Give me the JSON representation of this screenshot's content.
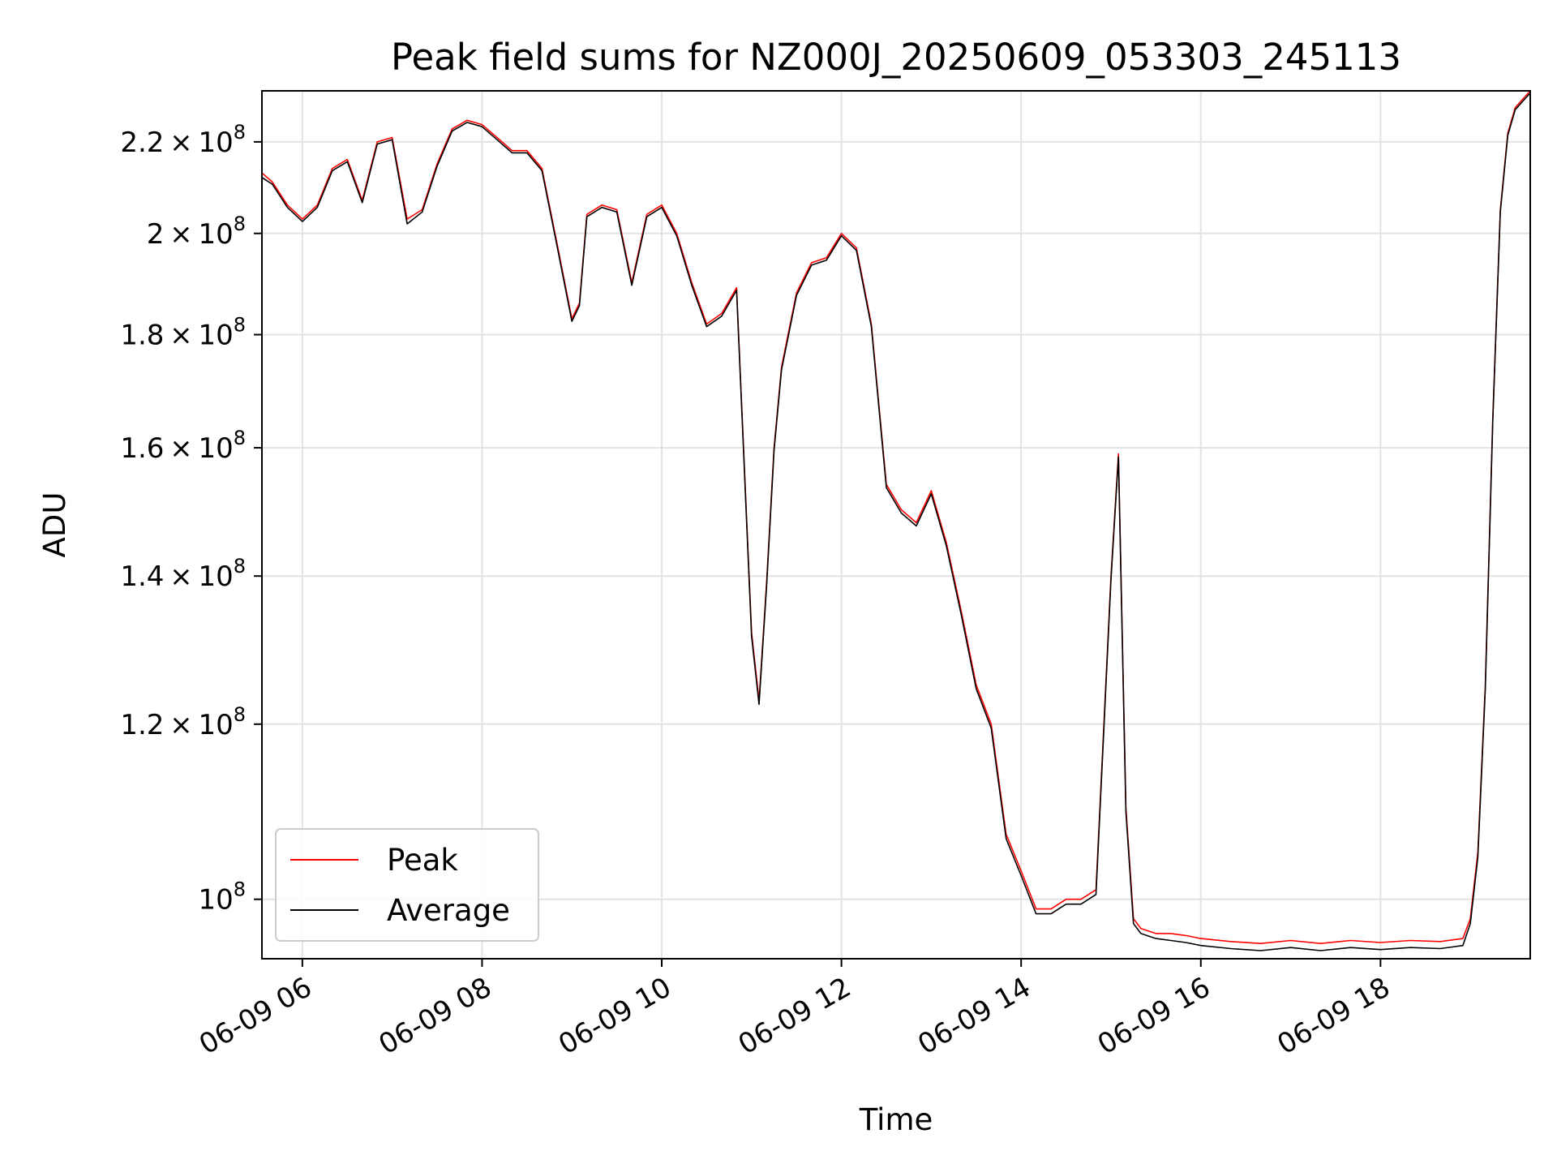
{
  "chart_data": {
    "type": "line",
    "title": "Peak field sums for NZ000J_20250609_053303_245113",
    "xlabel": "Time",
    "ylabel": "ADU",
    "yscale": "log",
    "xlim": [
      "2025-06-09 05:33",
      "2025-06-09 19:40"
    ],
    "ylim": [
      94000000,
      232000000
    ],
    "grid": true,
    "legend_position": "lower-left",
    "x_ticks": [
      {
        "x": "2025-06-09 06:00",
        "label": "06-09 06"
      },
      {
        "x": "2025-06-09 08:00",
        "label": "06-09 08"
      },
      {
        "x": "2025-06-09 10:00",
        "label": "06-09 10"
      },
      {
        "x": "2025-06-09 12:00",
        "label": "06-09 12"
      },
      {
        "x": "2025-06-09 14:00",
        "label": "06-09 14"
      },
      {
        "x": "2025-06-09 16:00",
        "label": "06-09 16"
      },
      {
        "x": "2025-06-09 18:00",
        "label": "06-09 18"
      }
    ],
    "y_ticks": [
      {
        "value": 100000000,
        "mant": "",
        "exp": "8"
      },
      {
        "value": 120000000,
        "mant": "1.2",
        "exp": "8"
      },
      {
        "value": 140000000,
        "mant": "1.4",
        "exp": "8"
      },
      {
        "value": 160000000,
        "mant": "1.6",
        "exp": "8"
      },
      {
        "value": 180000000,
        "mant": "1.8",
        "exp": "8"
      },
      {
        "value": 200000000,
        "mant": "2",
        "exp": "8"
      },
      {
        "value": 220000000,
        "mant": "2.2",
        "exp": "8"
      }
    ],
    "x": [
      "05:33",
      "05:40",
      "05:50",
      "06:00",
      "06:10",
      "06:20",
      "06:30",
      "06:40",
      "06:50",
      "07:00",
      "07:10",
      "07:20",
      "07:30",
      "07:40",
      "07:50",
      "08:00",
      "08:10",
      "08:20",
      "08:30",
      "08:40",
      "08:50",
      "09:00",
      "09:05",
      "09:10",
      "09:20",
      "09:30",
      "09:40",
      "09:50",
      "10:00",
      "10:10",
      "10:20",
      "10:30",
      "10:40",
      "10:50",
      "11:00",
      "11:05",
      "11:10",
      "11:15",
      "11:20",
      "11:30",
      "11:40",
      "11:50",
      "12:00",
      "12:10",
      "12:20",
      "12:30",
      "12:40",
      "12:50",
      "13:00",
      "13:10",
      "13:20",
      "13:30",
      "13:40",
      "13:50",
      "14:00",
      "14:10",
      "14:20",
      "14:30",
      "14:40",
      "14:50",
      "15:00",
      "15:05",
      "15:10",
      "15:15",
      "15:20",
      "15:30",
      "15:40",
      "15:50",
      "16:00",
      "16:20",
      "16:40",
      "17:00",
      "17:20",
      "17:40",
      "18:00",
      "18:20",
      "18:40",
      "18:55",
      "19:00",
      "19:05",
      "19:10",
      "19:15",
      "19:20",
      "19:25",
      "19:30",
      "19:40"
    ],
    "series": [
      {
        "name": "Peak",
        "color": "#ff0000",
        "values": [
          213000000,
          211000000,
          206000000,
          203000000,
          206000000,
          214000000,
          216000000,
          207000000,
          220000000,
          221000000,
          203000000,
          205000000,
          215000000,
          223000000,
          225000000,
          224000000,
          221000000,
          218000000,
          218000000,
          214000000,
          198000000,
          183000000,
          186000000,
          204000000,
          206000000,
          205000000,
          190000000,
          204000000,
          206000000,
          200000000,
          190000000,
          182000000,
          184000000,
          189000000,
          132000000,
          123000000,
          139000000,
          160000000,
          174000000,
          188000000,
          194000000,
          195000000,
          200000000,
          197000000,
          182000000,
          154000000,
          150000000,
          148000000,
          153000000,
          145000000,
          135000000,
          125000000,
          120000000,
          107000000,
          103000000,
          99000000,
          99000000,
          100000000,
          100000000,
          101000000,
          140000000,
          159000000,
          110000000,
          98000000,
          97000000,
          96500000,
          96500000,
          96300000,
          96000000,
          95700000,
          95500000,
          95800000,
          95500000,
          95800000,
          95600000,
          95800000,
          95700000,
          96000000,
          98000000,
          105000000,
          125000000,
          165000000,
          205000000,
          222000000,
          228000000,
          232000000
        ]
      },
      {
        "name": "Average",
        "color": "#000000",
        "values": [
          212000000,
          210500000,
          205500000,
          202500000,
          205500000,
          213500000,
          215500000,
          206500000,
          219500000,
          220500000,
          202000000,
          204500000,
          214500000,
          222500000,
          224500000,
          223500000,
          220500000,
          217500000,
          217500000,
          213500000,
          197500000,
          182500000,
          185500000,
          203500000,
          205500000,
          204500000,
          189500000,
          203500000,
          205500000,
          199500000,
          189500000,
          181500000,
          183500000,
          188500000,
          131500000,
          122500000,
          138500000,
          159500000,
          173500000,
          187500000,
          193500000,
          194500000,
          199500000,
          196500000,
          181500000,
          153500000,
          149500000,
          147500000,
          152500000,
          144500000,
          134500000,
          124500000,
          119500000,
          106500000,
          102500000,
          98500000,
          98500000,
          99500000,
          99500000,
          100500000,
          139500000,
          158500000,
          109500000,
          97500000,
          96500000,
          96000000,
          95800000,
          95600000,
          95300000,
          95000000,
          94800000,
          95100000,
          94800000,
          95100000,
          94900000,
          95100000,
          95000000,
          95300000,
          97500000,
          104500000,
          124500000,
          164500000,
          204500000,
          221500000,
          227500000,
          231500000
        ]
      }
    ]
  }
}
